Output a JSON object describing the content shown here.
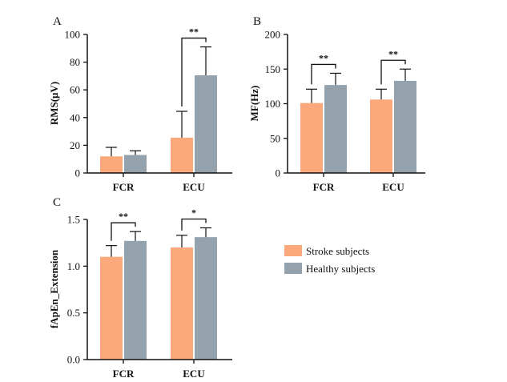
{
  "colors": {
    "stroke": "#fba97a",
    "healthy": "#93a2ac",
    "axis": "#111111"
  },
  "legend": {
    "stroke_label": "Stroke subjects",
    "healthy_label": "Healthy subjects"
  },
  "chart_data": [
    {
      "panel": "A",
      "type": "bar",
      "ylabel": "RMS(μV)",
      "xlabel": "",
      "categories": [
        "FCR",
        "ECU"
      ],
      "ylim": [
        0,
        100
      ],
      "yticks": [
        0,
        20,
        40,
        60,
        80,
        100
      ],
      "tick_labels": [
        "0",
        "20",
        "40",
        "60",
        "80",
        "100"
      ],
      "series": [
        {
          "name": "Stroke subjects",
          "values": [
            12,
            25.5
          ],
          "errors": [
            6.5,
            19
          ]
        },
        {
          "name": "Healthy subjects",
          "values": [
            13,
            70.5
          ],
          "errors": [
            3,
            20.5
          ]
        }
      ],
      "significance": [
        {
          "category_index": 1,
          "label": "**"
        }
      ]
    },
    {
      "panel": "B",
      "type": "bar",
      "ylabel": "MF(Hz)",
      "xlabel": "",
      "categories": [
        "FCR",
        "ECU"
      ],
      "ylim": [
        0,
        200
      ],
      "yticks": [
        0,
        50,
        100,
        150,
        200
      ],
      "tick_labels": [
        "0",
        "50",
        "100",
        "150",
        "200"
      ],
      "series": [
        {
          "name": "Stroke subjects",
          "values": [
            101,
            106
          ],
          "errors": [
            20,
            15
          ]
        },
        {
          "name": "Healthy subjects",
          "values": [
            127,
            133
          ],
          "errors": [
            17,
            17
          ]
        }
      ],
      "significance": [
        {
          "category_index": 0,
          "label": "**"
        },
        {
          "category_index": 1,
          "label": "**"
        }
      ]
    },
    {
      "panel": "C",
      "type": "bar",
      "ylabel": "fApEn_Extension",
      "xlabel": "",
      "categories": [
        "FCR",
        "ECU"
      ],
      "ylim": [
        0,
        1.5
      ],
      "yticks": [
        0,
        0.5,
        1.0,
        1.5
      ],
      "tick_labels": [
        "0.0",
        "0.5",
        "1.0",
        "1.5"
      ],
      "series": [
        {
          "name": "Stroke subjects",
          "values": [
            1.1,
            1.2
          ],
          "errors": [
            0.12,
            0.13
          ]
        },
        {
          "name": "Healthy subjects",
          "values": [
            1.27,
            1.31
          ],
          "errors": [
            0.1,
            0.1
          ]
        }
      ],
      "significance": [
        {
          "category_index": 0,
          "label": "**"
        },
        {
          "category_index": 1,
          "label": "*"
        }
      ]
    }
  ]
}
